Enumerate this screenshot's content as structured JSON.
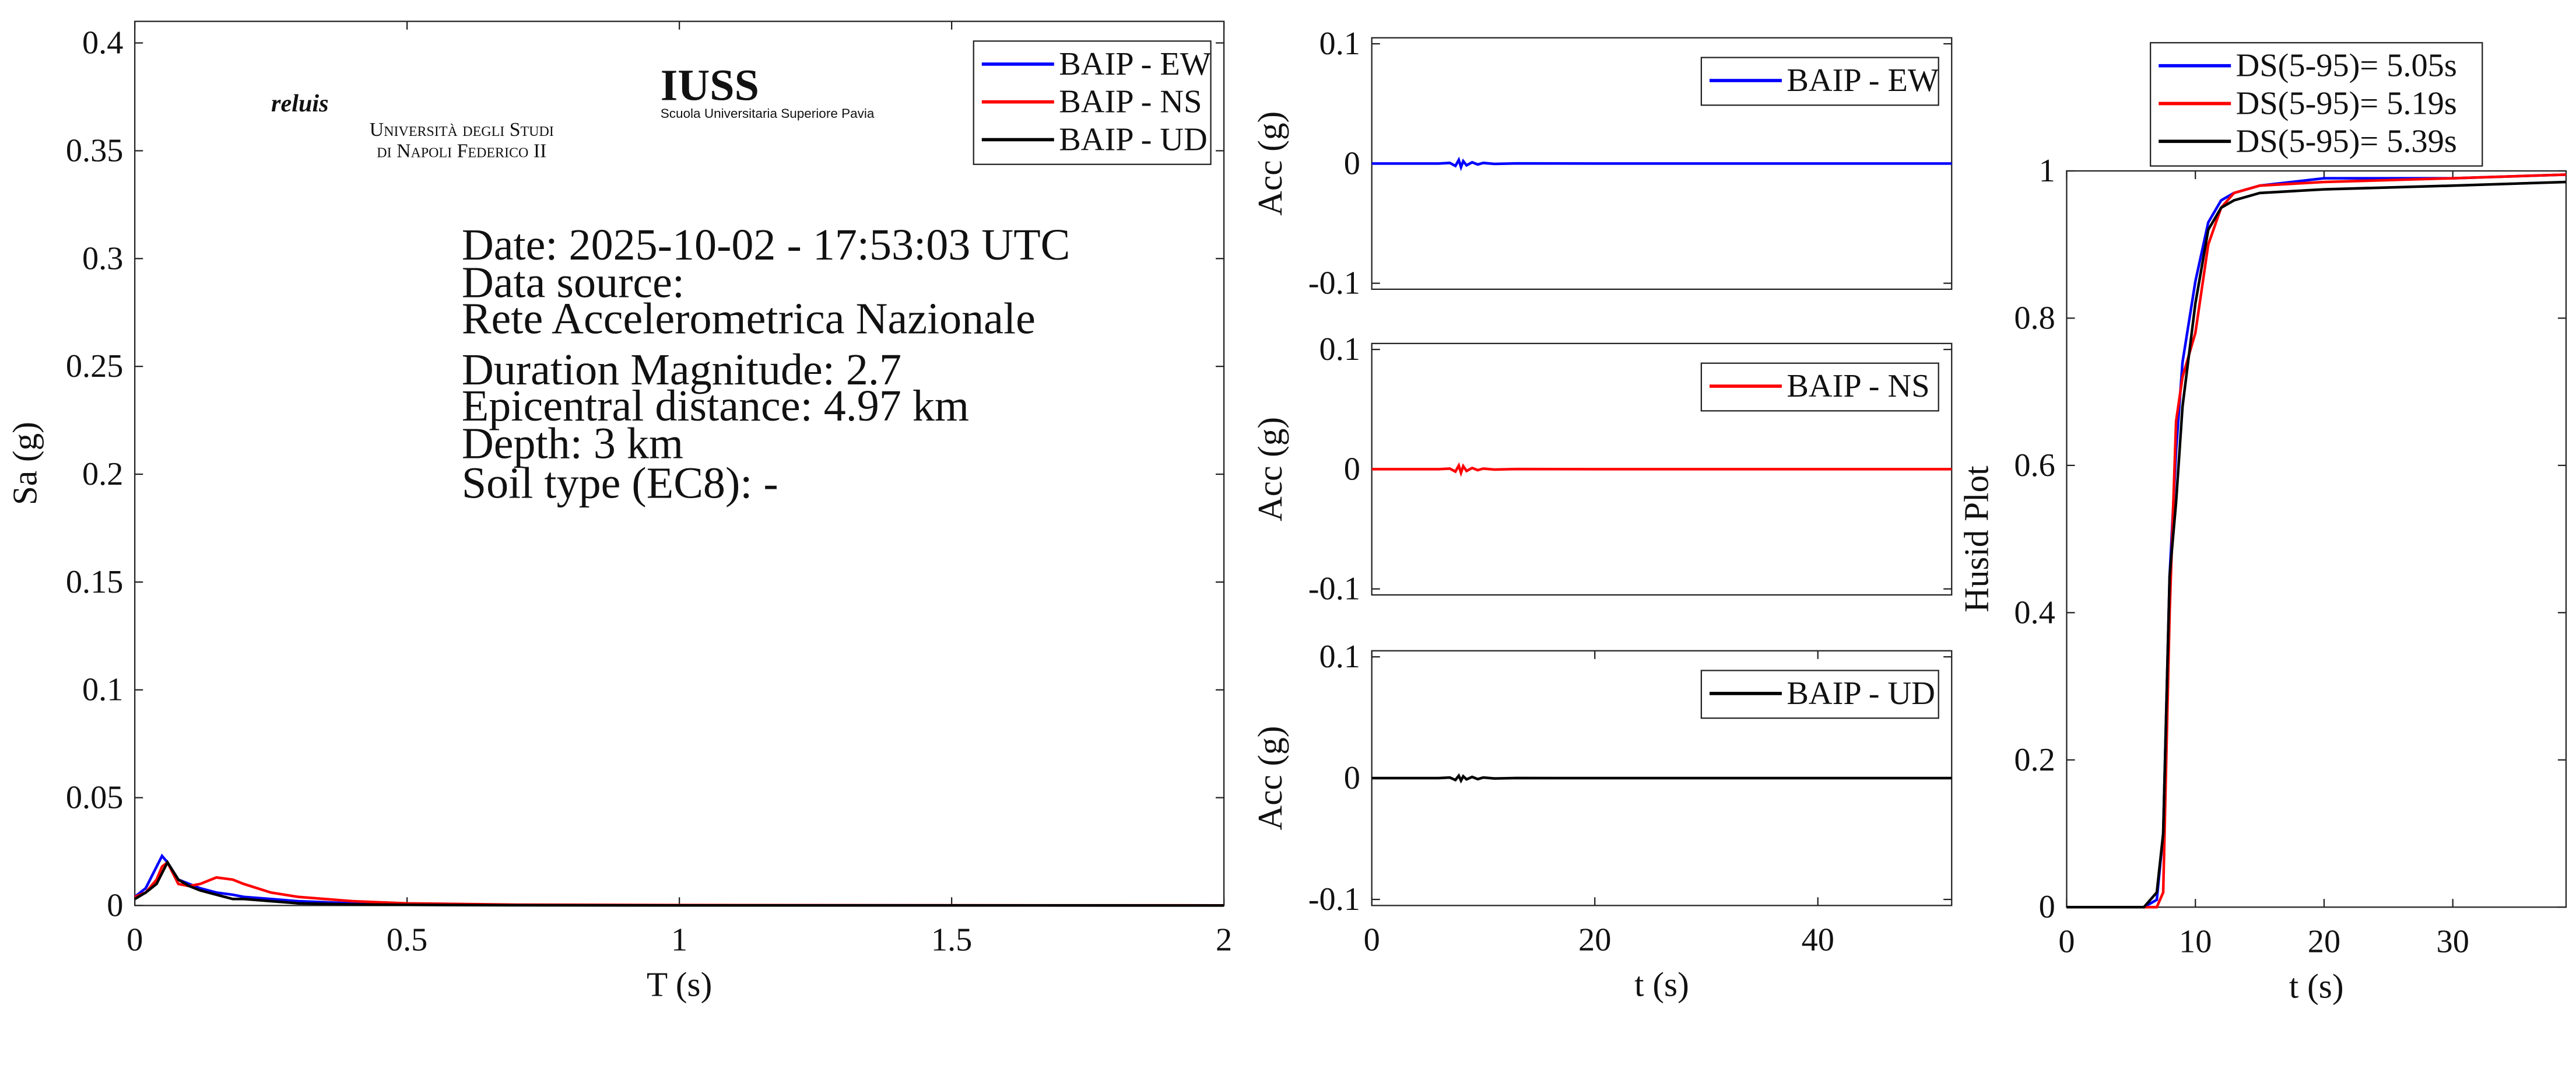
{
  "chart_data": [
    {
      "type": "line",
      "x_label": "T (s)",
      "y_label": "Sa (g)",
      "xlim": [
        0,
        2
      ],
      "xticks": [
        0,
        0.5,
        1,
        1.5,
        2
      ],
      "ylim": [
        0,
        0.41
      ],
      "yticks": [
        0,
        0.05,
        0.1,
        0.15,
        0.2,
        0.25,
        0.3,
        0.35,
        0.4
      ],
      "legend": "upper right",
      "x": [
        0,
        0.02,
        0.04,
        0.05,
        0.06,
        0.08,
        0.1,
        0.12,
        0.15,
        0.18,
        0.2,
        0.25,
        0.3,
        0.4,
        0.5,
        0.7,
        1,
        1.5,
        2
      ],
      "series": [
        {
          "name": "BAIP - EW",
          "color": "#0000ff",
          "values": [
            0.004,
            0.008,
            0.018,
            0.023,
            0.02,
            0.012,
            0.01,
            0.008,
            0.006,
            0.005,
            0.004,
            0.003,
            0.002,
            0.001,
            0.0005,
            0.0002,
            0.0001,
            5e-05,
            3e-05
          ]
        },
        {
          "name": "BAIP - NS",
          "color": "#ff0000",
          "values": [
            0.004,
            0.006,
            0.012,
            0.018,
            0.02,
            0.01,
            0.009,
            0.01,
            0.013,
            0.012,
            0.01,
            0.006,
            0.004,
            0.002,
            0.001,
            0.0004,
            0.0002,
            0.0001,
            5e-05
          ]
        },
        {
          "name": "BAIP - UD",
          "color": "#000000",
          "values": [
            0.003,
            0.006,
            0.01,
            0.015,
            0.02,
            0.012,
            0.009,
            0.007,
            0.005,
            0.003,
            0.003,
            0.002,
            0.001,
            0.0005,
            0.0003,
            0.0001,
            5e-05,
            3e-05,
            2e-05
          ]
        }
      ],
      "annotations": [
        "Date: 2025-10-02 - 17:53:03 UTC",
        "Data source:",
        "Rete Accelerometrica Nazionale",
        "Duration Magnitude: 2.7",
        "Epicentral distance: 4.97 km",
        "Depth: 3 km",
        "Soil type (EC8): -"
      ],
      "logos": [
        "reluis",
        "Università degli Studi",
        "di Napoli Federico II",
        "IUSS",
        "Scuola Universitaria Superiore Pavia"
      ]
    },
    {
      "type": "line",
      "y_label": "Acc (g)",
      "xlim": [
        0,
        52
      ],
      "ylim": [
        -0.105,
        0.105
      ],
      "yticks": [
        -0.1,
        0,
        0.1
      ],
      "legend": "upper right",
      "x": [
        0,
        6,
        7,
        7.5,
        7.8,
        8,
        8.2,
        8.5,
        9,
        9.5,
        10,
        11,
        13,
        20,
        52
      ],
      "series": [
        {
          "name": "BAIP - EW",
          "color": "#0000ff",
          "values": [
            0,
            0,
            0.0005,
            -0.002,
            0.003,
            -0.003,
            0.002,
            -0.0015,
            0.001,
            -0.0008,
            0.0005,
            -0.0003,
            0.0001,
            0,
            0
          ]
        }
      ]
    },
    {
      "type": "line",
      "y_label": "Acc (g)",
      "xlim": [
        0,
        52
      ],
      "ylim": [
        -0.105,
        0.105
      ],
      "yticks": [
        -0.1,
        0,
        0.1
      ],
      "legend": "upper right",
      "x": [
        0,
        6,
        7,
        7.5,
        7.8,
        8,
        8.2,
        8.5,
        9,
        9.5,
        10,
        11,
        13,
        20,
        52
      ],
      "series": [
        {
          "name": "BAIP - NS",
          "color": "#ff0000",
          "values": [
            0,
            0,
            0.0005,
            -0.002,
            0.003,
            -0.003,
            0.0025,
            -0.0015,
            0.001,
            -0.0008,
            0.0005,
            -0.0003,
            0.0001,
            0,
            0
          ]
        }
      ]
    },
    {
      "type": "line",
      "x_label": "t (s)",
      "y_label": "Acc (g)",
      "xlim": [
        0,
        52
      ],
      "xticks": [
        0,
        20,
        40
      ],
      "ylim": [
        -0.105,
        0.105
      ],
      "yticks": [
        -0.1,
        0,
        0.1
      ],
      "legend": "upper right",
      "x": [
        0,
        6,
        7,
        7.5,
        7.8,
        8,
        8.2,
        8.5,
        9,
        9.5,
        10,
        11,
        13,
        20,
        52
      ],
      "series": [
        {
          "name": "BAIP - UD",
          "color": "#000000",
          "values": [
            0,
            0,
            0.0005,
            -0.0015,
            0.002,
            -0.002,
            0.0015,
            -0.001,
            0.001,
            -0.0008,
            0.0005,
            -0.0003,
            0.0001,
            0,
            0
          ]
        }
      ]
    },
    {
      "type": "line",
      "x_label": "t (s)",
      "y_label": "Husid Plot",
      "xlim": [
        0,
        38.8
      ],
      "xticks": [
        0,
        10,
        20,
        30
      ],
      "ylim": [
        0,
        1
      ],
      "yticks": [
        0,
        0.2,
        0.4,
        0.6,
        0.8,
        1
      ],
      "legend": "north outside",
      "x": [
        0,
        6,
        7,
        7.5,
        8,
        8.5,
        9,
        10,
        11,
        12,
        13,
        15,
        20,
        30,
        38.8
      ],
      "series": [
        {
          "name": "DS(5-95)= 5.05s",
          "color": "#0000ff",
          "values": [
            0,
            0,
            0.01,
            0.1,
            0.45,
            0.62,
            0.74,
            0.85,
            0.93,
            0.96,
            0.97,
            0.98,
            0.99,
            0.99,
            0.995
          ]
        },
        {
          "name": "DS(5-95)= 5.19s",
          "color": "#ff0000",
          "values": [
            0,
            0,
            0,
            0.02,
            0.4,
            0.66,
            0.72,
            0.78,
            0.9,
            0.95,
            0.97,
            0.98,
            0.985,
            0.99,
            0.995
          ]
        },
        {
          "name": "DS(5-95)= 5.39s",
          "color": "#000000",
          "values": [
            0,
            0,
            0.02,
            0.1,
            0.45,
            0.55,
            0.68,
            0.82,
            0.92,
            0.95,
            0.96,
            0.97,
            0.975,
            0.98,
            0.985
          ]
        }
      ]
    }
  ]
}
